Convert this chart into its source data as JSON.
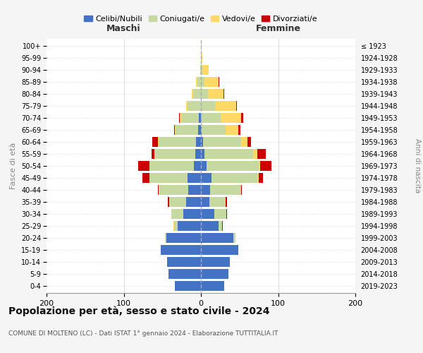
{
  "age_groups": [
    "0-4",
    "5-9",
    "10-14",
    "15-19",
    "20-24",
    "25-29",
    "30-34",
    "35-39",
    "40-44",
    "45-49",
    "50-54",
    "55-59",
    "60-64",
    "65-69",
    "70-74",
    "75-79",
    "80-84",
    "85-89",
    "90-94",
    "95-99",
    "100+"
  ],
  "birth_years": [
    "2019-2023",
    "2014-2018",
    "2009-2013",
    "2004-2008",
    "1999-2003",
    "1994-1998",
    "1989-1993",
    "1984-1988",
    "1979-1983",
    "1974-1978",
    "1969-1973",
    "1964-1968",
    "1959-1963",
    "1954-1958",
    "1949-1953",
    "1944-1948",
    "1939-1943",
    "1934-1938",
    "1929-1933",
    "1924-1928",
    "≤ 1923"
  ],
  "maschi": {
    "celibi": [
      34,
      42,
      44,
      52,
      45,
      30,
      23,
      19,
      16,
      17,
      9,
      7,
      6,
      4,
      3,
      0,
      0,
      0,
      0,
      0,
      0
    ],
    "coniugati": [
      0,
      0,
      0,
      0,
      2,
      5,
      15,
      22,
      38,
      50,
      58,
      52,
      49,
      29,
      22,
      17,
      10,
      5,
      1,
      0,
      0
    ],
    "vedovi": [
      0,
      0,
      0,
      0,
      0,
      1,
      0,
      0,
      1,
      0,
      0,
      1,
      1,
      1,
      2,
      2,
      2,
      1,
      0,
      0,
      0
    ],
    "divorziati": [
      0,
      0,
      0,
      0,
      0,
      0,
      0,
      2,
      1,
      9,
      14,
      4,
      7,
      1,
      1,
      0,
      0,
      0,
      0,
      0,
      0
    ]
  },
  "femmine": {
    "nubili": [
      30,
      36,
      37,
      48,
      42,
      23,
      17,
      11,
      12,
      14,
      7,
      5,
      3,
      1,
      0,
      0,
      0,
      0,
      0,
      0,
      0
    ],
    "coniugate": [
      0,
      0,
      0,
      0,
      3,
      4,
      16,
      21,
      40,
      60,
      68,
      63,
      49,
      31,
      26,
      18,
      9,
      5,
      2,
      0,
      0
    ],
    "vedove": [
      0,
      0,
      0,
      0,
      0,
      0,
      0,
      0,
      0,
      1,
      2,
      5,
      8,
      16,
      26,
      28,
      20,
      18,
      8,
      2,
      1
    ],
    "divorziate": [
      0,
      0,
      0,
      0,
      0,
      1,
      1,
      2,
      1,
      5,
      14,
      11,
      5,
      3,
      3,
      1,
      1,
      1,
      0,
      0,
      0
    ]
  },
  "colors": {
    "celibi": "#4472C4",
    "coniugati": "#C5D9A0",
    "vedovi": "#FFD966",
    "divorziati": "#CC0000"
  },
  "title": "Popolazione per età, sesso e stato civile - 2024",
  "subtitle": "COMUNE DI MOLTENO (LC) - Dati ISTAT 1° gennaio 2024 - Elaborazione TUTTITALIA.IT",
  "xlabel_left": "Maschi",
  "xlabel_right": "Femmine",
  "ylabel_left": "Fasce di età",
  "ylabel_right": "Anni di nascita",
  "xlim": 200,
  "legend_labels": [
    "Celibi/Nubili",
    "Coniugati/e",
    "Vedovi/e",
    "Divorziati/e"
  ],
  "bg_color": "#f5f5f5",
  "plot_bg": "#ffffff"
}
